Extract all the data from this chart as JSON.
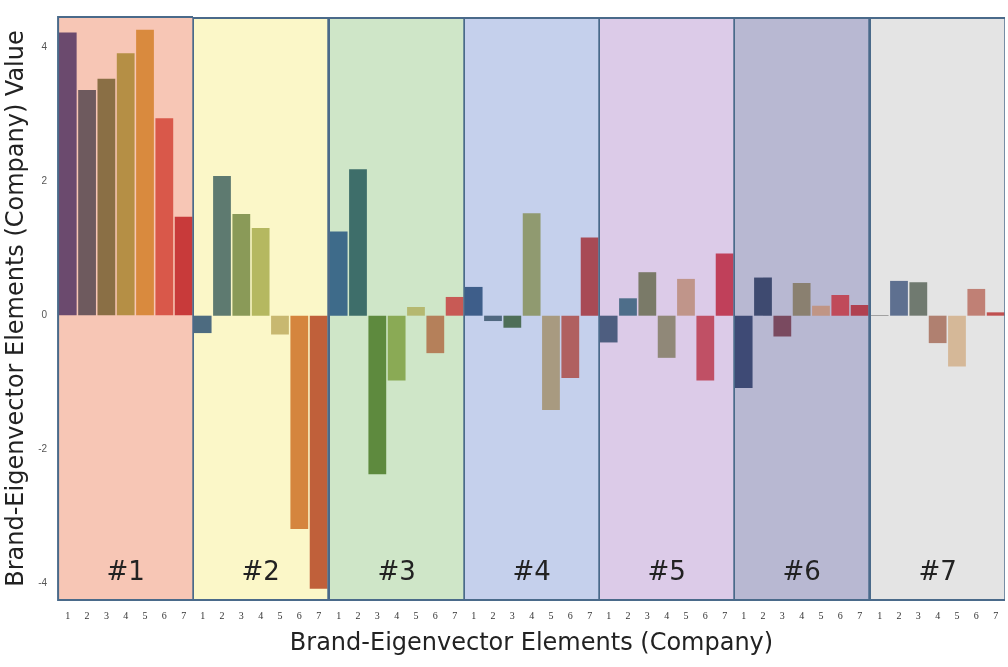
{
  "chart_data": [
    {
      "type": "bar",
      "ylabel": "Brand-Eigenvector Elements (Company) Value",
      "xlabel": "Brand-Eigenvector  Elements (Company)",
      "categories": [
        "1",
        "2",
        "3",
        "4",
        "5",
        "6",
        "7"
      ],
      "values": [
        4.22,
        3.36,
        3.53,
        3.91,
        4.26,
        2.94,
        1.47
      ],
      "colors": [
        "#6b4a6e",
        "#6e5a5e",
        "#8a6f45",
        "#b58f45",
        "#d98a3e",
        "#d9584a",
        "#c83a3a"
      ],
      "ylim": [
        -4.25,
        4.45
      ],
      "yticks": [
        4,
        2,
        0,
        -2,
        -4
      ],
      "bands": [
        {
          "axis": "y",
          "from": -4.25,
          "to": 4.45,
          "color": "#f7c6b5"
        }
      ],
      "annotations": [
        "#1"
      ]
    },
    {
      "type": "bar",
      "categories": [
        "1",
        "2",
        "3",
        "4",
        "5",
        "6",
        "7"
      ],
      "values": [
        -0.26,
        2.09,
        1.52,
        1.31,
        -0.28,
        -3.19,
        -4.08
      ],
      "colors": [
        "#4d6b80",
        "#5e7a70",
        "#8a9a58",
        "#b5b860",
        "#c8b870",
        "#d5853e",
        "#c0603a"
      ],
      "ylim": [
        -4.25,
        4.45
      ],
      "tick_labels": "x",
      "bands": [
        {
          "axis": "y",
          "from": -4.25,
          "to": 4.45,
          "color": "#fbf7c8"
        }
      ],
      "annotations": [
        "#2"
      ]
    },
    {
      "type": "bar",
      "categories": [
        "1",
        "2",
        "3",
        "4",
        "5",
        "6",
        "7"
      ],
      "values": [
        1.26,
        2.19,
        -2.37,
        -0.97,
        0.13,
        -0.56,
        0.28
      ],
      "colors": [
        "#3e6b8a",
        "#3e6e6a",
        "#5e8a3e",
        "#8aaa55",
        "#b5b870",
        "#b5805a",
        "#c85a55"
      ],
      "ylim": [
        -4.25,
        4.45
      ],
      "tick_labels": "x",
      "bands": [
        {
          "axis": "y",
          "from": -4.25,
          "to": 4.45,
          "color": "#cfe6c8"
        }
      ],
      "annotations": [
        "#3"
      ]
    },
    {
      "type": "bar",
      "categories": [
        "1",
        "2",
        "3",
        "4",
        "5",
        "6",
        "7"
      ],
      "values": [
        0.43,
        -0.08,
        -0.18,
        1.53,
        -1.41,
        -0.93,
        1.17
      ],
      "colors": [
        "#3e5e8a",
        "#506880",
        "#4e6e58",
        "#909a70",
        "#a89a80",
        "#b06060",
        "#a84a55"
      ],
      "ylim": [
        -4.25,
        4.45
      ],
      "tick_labels": "x",
      "bands": [
        {
          "axis": "y",
          "from": -4.25,
          "to": 4.45,
          "color": "#c5d0ec"
        }
      ],
      "annotations": [
        "#4"
      ]
    },
    {
      "type": "bar",
      "categories": [
        "1",
        "2",
        "3",
        "4",
        "5",
        "6",
        "7"
      ],
      "values": [
        -0.4,
        0.26,
        0.65,
        -0.63,
        0.55,
        -0.97,
        0.93
      ],
      "colors": [
        "#4e5e80",
        "#4e6e8a",
        "#7a7a68",
        "#908878",
        "#c0958a",
        "#c05065",
        "#c0405a"
      ],
      "ylim": [
        -4.25,
        4.45
      ],
      "tick_labels": "x",
      "bands": [
        {
          "axis": "y",
          "from": -4.25,
          "to": 4.45,
          "color": "#dccbe8"
        }
      ],
      "annotations": [
        "#5"
      ]
    },
    {
      "type": "bar",
      "categories": [
        "1",
        "2",
        "3",
        "4",
        "5",
        "6",
        "7"
      ],
      "values": [
        -1.08,
        0.57,
        -0.31,
        0.49,
        0.15,
        0.31,
        0.16
      ],
      "colors": [
        "#3e4a75",
        "#3e4a70",
        "#7a4a60",
        "#8a8070",
        "#c09585",
        "#c04a5a",
        "#b04050"
      ],
      "ylim": [
        -4.25,
        4.45
      ],
      "tick_labels": "x",
      "bands": [
        {
          "axis": "y",
          "from": -4.25,
          "to": 4.45,
          "color": "#b8b8d2"
        }
      ],
      "annotations": [
        "#6"
      ]
    },
    {
      "type": "bar",
      "categories": [
        "1",
        "2",
        "3",
        "4",
        "5",
        "6",
        "7"
      ],
      "values": [
        0.01,
        0.52,
        0.5,
        -0.41,
        -0.76,
        0.4,
        0.05
      ],
      "colors": [
        "#808080",
        "#5e7090",
        "#707a70",
        "#b08070",
        "#d5b898",
        "#c08075",
        "#c05050"
      ],
      "ylim": [
        -4.25,
        4.45
      ],
      "tick_labels": "x",
      "bands": [
        {
          "axis": "y",
          "from": -4.25,
          "to": 4.45,
          "color": "#e4e4e4"
        }
      ],
      "annotations": [
        "#7"
      ]
    }
  ]
}
